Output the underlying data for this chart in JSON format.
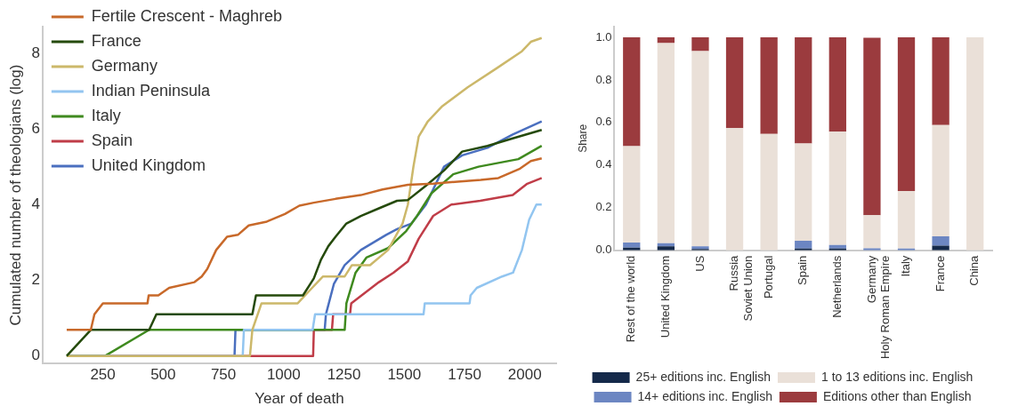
{
  "chart_data": [
    {
      "type": "line",
      "xlabel": "Year of death",
      "ylabel": "Cumulated number of theologians (log)",
      "xlim": [
        0,
        2130
      ],
      "ylim": [
        -0.2,
        8.7
      ],
      "xticks": [
        250,
        500,
        750,
        1000,
        1250,
        1500,
        1750,
        2000
      ],
      "yticks": [
        0,
        2,
        4,
        6,
        8
      ],
      "grid": false,
      "legend": "top left",
      "series": [
        {
          "name": "Fertile Crescent - Maghreb",
          "color": "#c8692a",
          "x": [
            100,
            200,
            215,
            250,
            435,
            440,
            480,
            525,
            630,
            660,
            683,
            720,
            765,
            810,
            855,
            930,
            1005,
            1065,
            1125,
            1215,
            1320,
            1410,
            1515,
            1620,
            1710,
            1817,
            1890,
            1980,
            2025,
            2070
          ],
          "values": [
            0.69,
            0.69,
            1.1,
            1.39,
            1.39,
            1.6,
            1.6,
            1.8,
            1.95,
            2.1,
            2.3,
            2.8,
            3.15,
            3.2,
            3.45,
            3.55,
            3.75,
            3.97,
            4.05,
            4.15,
            4.25,
            4.4,
            4.52,
            4.55,
            4.6,
            4.65,
            4.7,
            4.95,
            5.15,
            5.22
          ]
        },
        {
          "name": "France",
          "color": "#254a0b",
          "x": [
            100,
            200,
            442,
            472,
            870,
            885,
            1080,
            1125,
            1155,
            1185,
            1215,
            1260,
            1320,
            1395,
            1470,
            1515,
            1590,
            1665,
            1740,
            1845,
            1950,
            2070
          ],
          "values": [
            0,
            0.69,
            0.69,
            1.1,
            1.1,
            1.6,
            1.6,
            2.05,
            2.55,
            2.9,
            3.15,
            3.5,
            3.7,
            3.9,
            4.1,
            4.12,
            4.5,
            4.9,
            5.4,
            5.55,
            5.75,
            5.97
          ]
        },
        {
          "name": "Germany",
          "color": "#ccb86a",
          "x": [
            100,
            860,
            870,
            908,
            1058,
            1118,
            1163,
            1253,
            1283,
            1358,
            1433,
            1493,
            1515,
            1538,
            1560,
            1598,
            1658,
            1763,
            1883,
            1988,
            2025,
            2070
          ],
          "values": [
            0,
            0,
            0.69,
            1.39,
            1.39,
            1.8,
            2.1,
            2.1,
            2.4,
            2.4,
            2.8,
            3.5,
            4.0,
            5.0,
            5.8,
            6.2,
            6.6,
            7.1,
            7.6,
            8.05,
            8.3,
            8.4
          ]
        },
        {
          "name": "Indian Peninsula",
          "color": "#92c5f0",
          "x": [
            100,
            830,
            835,
            1120,
            1130,
            1580,
            1585,
            1771,
            1775,
            1801,
            1906,
            1951,
            1988,
            2018,
            2048,
            2070
          ],
          "values": [
            0,
            0,
            0.69,
            0.69,
            1.1,
            1.1,
            1.39,
            1.39,
            1.6,
            1.8,
            2.1,
            2.2,
            2.8,
            3.6,
            4.0,
            4.0
          ]
        },
        {
          "name": "Italy",
          "color": "#3f8a1f",
          "x": [
            100,
            259,
            442,
            1253,
            1260,
            1298,
            1343,
            1433,
            1508,
            1553,
            1613,
            1703,
            1808,
            1973,
            2070
          ],
          "values": [
            0,
            0,
            0.69,
            0.69,
            1.39,
            2.2,
            2.6,
            2.85,
            3.3,
            3.7,
            4.3,
            4.8,
            5.0,
            5.2,
            5.55
          ]
        },
        {
          "name": "Spain",
          "color": "#c03d48",
          "x": [
            100,
            1122,
            1125,
            1200,
            1205,
            1275,
            1280,
            1395,
            1455,
            1515,
            1560,
            1620,
            1695,
            1815,
            1950,
            2010,
            2070
          ],
          "values": [
            0,
            0,
            0.69,
            0.69,
            1.1,
            1.1,
            1.39,
            1.95,
            2.2,
            2.5,
            3.1,
            3.7,
            4.0,
            4.1,
            4.25,
            4.55,
            4.7
          ]
        },
        {
          "name": "United Kingdom",
          "color": "#4a6fbf",
          "x": [
            100,
            796,
            800,
            1170,
            1175,
            1208,
            1253,
            1320,
            1425,
            1470,
            1530,
            1590,
            1665,
            1740,
            1845,
            1950,
            2070
          ],
          "values": [
            0,
            0,
            0.69,
            0.69,
            1.1,
            1.9,
            2.4,
            2.8,
            3.2,
            3.35,
            3.5,
            4.0,
            5.0,
            5.3,
            5.5,
            5.85,
            6.2
          ]
        }
      ]
    },
    {
      "type": "bar",
      "stacked": true,
      "ylabel": "Share",
      "ylim": [
        0,
        1.05
      ],
      "yticks": [
        {
          "value": 0,
          "label": "0.0"
        },
        0.2,
        0.4,
        0.6,
        0.8,
        {
          "value": 1,
          "label": "1.0"
        }
      ],
      "grid": false,
      "legend": "bottom",
      "categories": [
        "Rest of the world",
        "United Kingdom",
        "US",
        "Russia\nSoviet Union",
        "Portugal",
        "Spain",
        "Netherlands",
        "Germany\nHoly Roman Empire",
        "Italy",
        "France",
        "China"
      ],
      "series": [
        {
          "name": "25+ editions inc. English",
          "color": "#14294a",
          "values": [
            0.012,
            0.018,
            0.006,
            0,
            0,
            0.008,
            0.008,
            null,
            0,
            0.022,
            0
          ]
        },
        {
          "name": "14+ editions inc. English",
          "color": "#6c86c2",
          "values": [
            0.024,
            0.015,
            0.012,
            0,
            0,
            0.037,
            0.017,
            0.009,
            0.008,
            0.043,
            0
          ]
        },
        {
          "name": "1 to 13 editions inc. English",
          "color": "#eae0d8",
          "values": [
            0.453,
            0.94,
            0.917,
            0.573,
            0.546,
            0.456,
            0.532,
            0.156,
            0.27,
            0.523,
            1.0
          ]
        },
        {
          "name": "Editions other than English",
          "color": "#9b3b3e",
          "values": [
            0.511,
            0.027,
            0.065,
            0.427,
            0.454,
            0.499,
            0.443,
            0.833,
            0.722,
            0.412,
            0
          ]
        }
      ]
    }
  ]
}
